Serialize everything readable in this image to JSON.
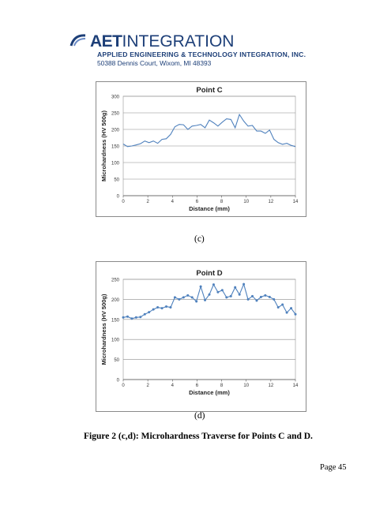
{
  "header": {
    "logo_bold": "AET",
    "logo_thin": "INTEGRATION",
    "tagline": "APPLIED ENGINEERING & TECHNOLOGY INTEGRATION, INC.",
    "address": "50388 Dennis Court, Wixom, MI 48393",
    "brand_color": "#1d3f78"
  },
  "chart_data": [
    {
      "type": "line",
      "title": "Point C",
      "xlabel": "Distance (mm)",
      "ylabel": "Microhardness (HV 500g)",
      "xlim": [
        0,
        14
      ],
      "ylim": [
        0,
        300
      ],
      "xticks": [
        0,
        2,
        4,
        6,
        8,
        10,
        12,
        14
      ],
      "yticks": [
        0,
        50,
        100,
        150,
        200,
        250,
        300
      ],
      "grid": true,
      "markers": false,
      "line_color": "#4f81bd",
      "x": [
        0,
        0.35,
        0.7,
        1.05,
        1.4,
        1.75,
        2.1,
        2.45,
        2.8,
        3.15,
        3.5,
        3.85,
        4.2,
        4.55,
        4.9,
        5.25,
        5.6,
        5.95,
        6.3,
        6.65,
        7.0,
        7.35,
        7.7,
        8.05,
        8.4,
        8.75,
        9.1,
        9.45,
        9.8,
        10.15,
        10.5,
        10.85,
        11.2,
        11.55,
        11.9,
        12.25,
        12.6,
        12.95,
        13.3,
        13.65,
        14.0
      ],
      "values": [
        156,
        148,
        150,
        153,
        157,
        165,
        160,
        165,
        158,
        170,
        172,
        185,
        208,
        215,
        214,
        200,
        210,
        212,
        215,
        205,
        228,
        220,
        210,
        222,
        232,
        230,
        205,
        245,
        225,
        210,
        212,
        195,
        195,
        188,
        198,
        170,
        160,
        155,
        158,
        152,
        148
      ]
    },
    {
      "type": "line",
      "title": "Point D",
      "xlabel": "Distance (mm)",
      "ylabel": "Microhardness (HV 500g)",
      "xlim": [
        0,
        14
      ],
      "ylim": [
        0,
        250
      ],
      "xticks": [
        0,
        2,
        4,
        6,
        8,
        10,
        12,
        14
      ],
      "yticks": [
        0,
        50,
        100,
        150,
        200,
        250
      ],
      "grid": true,
      "markers": true,
      "line_color": "#4f81bd",
      "x": [
        0,
        0.35,
        0.7,
        1.05,
        1.4,
        1.75,
        2.1,
        2.45,
        2.8,
        3.15,
        3.5,
        3.85,
        4.2,
        4.55,
        4.9,
        5.25,
        5.6,
        5.95,
        6.3,
        6.65,
        7.0,
        7.35,
        7.7,
        8.05,
        8.4,
        8.75,
        9.1,
        9.45,
        9.8,
        10.15,
        10.5,
        10.85,
        11.2,
        11.55,
        11.9,
        12.25,
        12.6,
        12.95,
        13.3,
        13.65,
        14.0
      ],
      "values": [
        155,
        157,
        152,
        155,
        156,
        163,
        168,
        175,
        180,
        178,
        182,
        180,
        205,
        200,
        205,
        210,
        205,
        195,
        232,
        198,
        212,
        237,
        218,
        223,
        205,
        208,
        230,
        212,
        238,
        200,
        208,
        197,
        206,
        210,
        206,
        200,
        180,
        187,
        167,
        178,
        163
      ]
    }
  ],
  "captions": {
    "c": "(c)",
    "d": "(d)",
    "figure": "Figure 2 (c,d):  Microhardness Traverse for Points C and D."
  },
  "page": {
    "number": "Page 45"
  }
}
